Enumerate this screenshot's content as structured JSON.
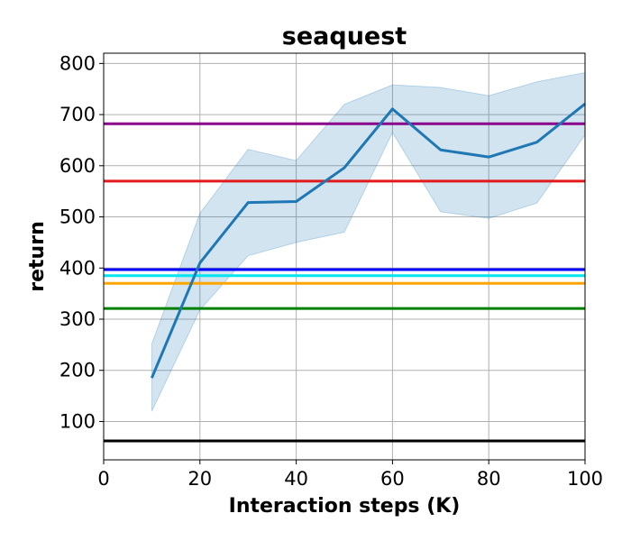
{
  "chart_data": {
    "type": "line",
    "title": "seaquest",
    "xlabel": "Interaction steps (K)",
    "ylabel": "return",
    "xlim": [
      0,
      100
    ],
    "ylim": [
      25,
      820
    ],
    "xticks": [
      0,
      20,
      40,
      60,
      80,
      100
    ],
    "yticks": [
      100,
      200,
      300,
      400,
      500,
      600,
      700,
      800
    ],
    "grid": true,
    "series": [
      {
        "color": "#1f77b4",
        "x": [
          10,
          20,
          30,
          40,
          50,
          60,
          70,
          80,
          90,
          100
        ],
        "y": [
          185,
          410,
          528,
          530,
          596,
          711,
          631,
          617,
          646,
          721
        ],
        "lower": [
          120,
          318,
          424,
          450,
          470,
          665,
          510,
          497,
          527,
          660
        ],
        "upper": [
          252,
          507,
          632,
          610,
          720,
          758,
          753,
          737,
          764,
          782
        ]
      }
    ],
    "baselines": [
      {
        "y": 682,
        "color": "#8b008b"
      },
      {
        "y": 570,
        "color": "#e31a1c"
      },
      {
        "y": 397,
        "color": "#0000ff"
      },
      {
        "y": 385,
        "color": "#00e5ee"
      },
      {
        "y": 370,
        "color": "#ffa500"
      },
      {
        "y": 321,
        "color": "#008000"
      },
      {
        "y": 62,
        "color": "#000000"
      }
    ]
  }
}
